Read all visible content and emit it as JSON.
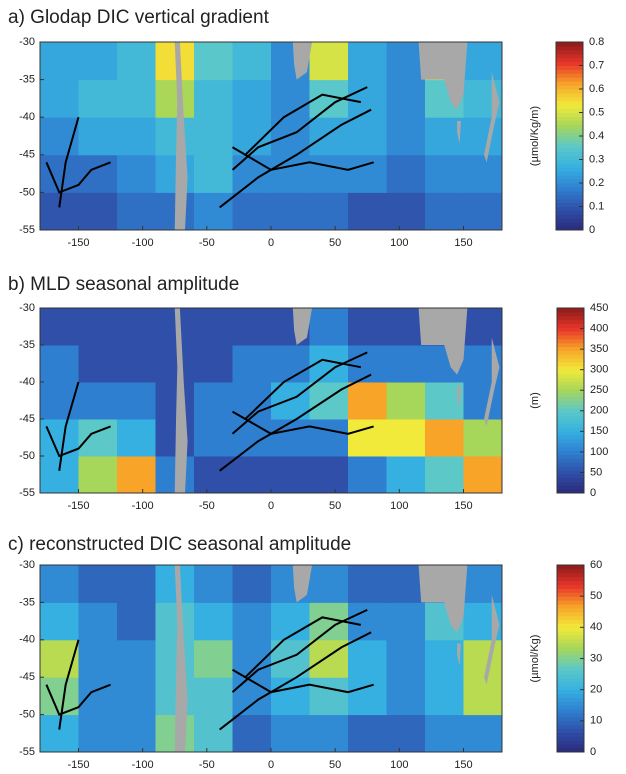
{
  "chart_data": [
    {
      "type": "heatmap",
      "title": "a) Glodap DIC vertical gradient",
      "colorbar_label": "(µmol/Kg/m)",
      "x": [
        -165,
        -135,
        -105,
        -75,
        -45,
        -15,
        15,
        45,
        75,
        105,
        135,
        165
      ],
      "y": [
        -52.5,
        -47.5,
        -42.5,
        -37.5,
        -32.5
      ],
      "z": [
        [
          0.1,
          0.1,
          0.15,
          0.15,
          0.2,
          0.15,
          0.15,
          0.15,
          0.1,
          0.1,
          0.15,
          0.15
        ],
        [
          0.15,
          0.15,
          0.2,
          0.25,
          0.3,
          0.2,
          0.2,
          0.2,
          0.2,
          0.15,
          0.2,
          0.2
        ],
        [
          0.2,
          0.25,
          0.25,
          0.3,
          0.3,
          0.25,
          0.2,
          0.25,
          0.25,
          0.2,
          0.25,
          0.25
        ],
        [
          0.25,
          0.3,
          0.3,
          0.45,
          0.3,
          0.25,
          0.2,
          0.35,
          0.25,
          0.2,
          0.35,
          0.3
        ],
        [
          0.25,
          0.25,
          0.3,
          0.55,
          0.35,
          0.3,
          0.2,
          0.5,
          0.25,
          0.2,
          0.5,
          0.25
        ]
      ],
      "xlim": [
        -180,
        180
      ],
      "ylim": [
        -55,
        -30
      ],
      "xticks": [
        -150,
        -100,
        -50,
        0,
        50,
        100,
        150
      ],
      "yticks": [
        -55,
        -50,
        -45,
        -40,
        -35,
        -30
      ],
      "clim": [
        0,
        0.8
      ],
      "cticks": [
        0,
        0.1,
        0.2,
        0.3,
        0.4,
        0.5,
        0.6,
        0.7,
        0.8
      ],
      "colormap": [
        "#2b2a7c",
        "#2f4fa8",
        "#2f7fd0",
        "#36b0e0",
        "#5cc8c8",
        "#a6d65a",
        "#f2ea3a",
        "#f7a429",
        "#e8352a",
        "#8c1a1a"
      ]
    },
    {
      "type": "heatmap",
      "title": "b) MLD seasonal amplitude",
      "colorbar_label": "(m)",
      "x": [
        -165,
        -135,
        -105,
        -75,
        -45,
        -15,
        15,
        45,
        75,
        105,
        135,
        165
      ],
      "y": [
        -52.5,
        -47.5,
        -42.5,
        -37.5,
        -32.5
      ],
      "z": [
        [
          150,
          250,
          350,
          100,
          50,
          50,
          50,
          50,
          100,
          150,
          200,
          350
        ],
        [
          150,
          200,
          150,
          50,
          100,
          100,
          100,
          100,
          300,
          300,
          350,
          250
        ],
        [
          100,
          100,
          100,
          50,
          100,
          100,
          150,
          200,
          350,
          250,
          200,
          100
        ],
        [
          100,
          50,
          50,
          50,
          50,
          100,
          100,
          150,
          100,
          100,
          100,
          100
        ],
        [
          50,
          50,
          50,
          50,
          50,
          50,
          50,
          100,
          50,
          50,
          50,
          50
        ]
      ],
      "xlim": [
        -180,
        180
      ],
      "ylim": [
        -55,
        -30
      ],
      "xticks": [
        -150,
        -100,
        -50,
        0,
        50,
        100,
        150
      ],
      "yticks": [
        -55,
        -50,
        -45,
        -40,
        -35,
        -30
      ],
      "clim": [
        0,
        450
      ],
      "cticks": [
        0,
        50,
        100,
        150,
        200,
        250,
        300,
        350,
        400,
        450
      ],
      "colormap": [
        "#2b2a7c",
        "#2f4fa8",
        "#2f7fd0",
        "#36b0e0",
        "#5cc8c8",
        "#a6d65a",
        "#f2ea3a",
        "#f7a429",
        "#e8352a",
        "#8c1a1a"
      ]
    },
    {
      "type": "heatmap",
      "title": "c) reconstructed DIC seasonal amplitude",
      "colorbar_label": "(µmol/Kg)",
      "x": [
        -165,
        -135,
        -105,
        -75,
        -45,
        -15,
        15,
        45,
        75,
        105,
        135,
        165
      ],
      "y": [
        -52.5,
        -47.5,
        -42.5,
        -37.5,
        -32.5
      ],
      "z": [
        [
          20,
          15,
          15,
          30,
          25,
          10,
          15,
          15,
          10,
          10,
          15,
          15
        ],
        [
          30,
          15,
          15,
          25,
          25,
          15,
          20,
          25,
          20,
          15,
          20,
          35
        ],
        [
          35,
          15,
          15,
          25,
          30,
          15,
          25,
          35,
          20,
          15,
          20,
          35
        ],
        [
          20,
          15,
          10,
          25,
          20,
          15,
          20,
          30,
          15,
          15,
          25,
          20
        ],
        [
          15,
          10,
          10,
          20,
          15,
          10,
          15,
          15,
          10,
          10,
          15,
          15
        ]
      ],
      "xlim": [
        -180,
        180
      ],
      "ylim": [
        -55,
        -30
      ],
      "xticks": [
        -150,
        -100,
        -50,
        0,
        50,
        100,
        150
      ],
      "yticks": [
        -55,
        -50,
        -45,
        -40,
        -35,
        -30
      ],
      "clim": [
        0,
        60
      ],
      "cticks": [
        0,
        10,
        20,
        30,
        40,
        50,
        60
      ],
      "colormap": [
        "#2b2a7c",
        "#2f4fa8",
        "#2f7fd0",
        "#36b0e0",
        "#5cc8c8",
        "#a6d65a",
        "#f2ea3a",
        "#f7a429",
        "#e8352a",
        "#8c1a1a"
      ]
    }
  ]
}
